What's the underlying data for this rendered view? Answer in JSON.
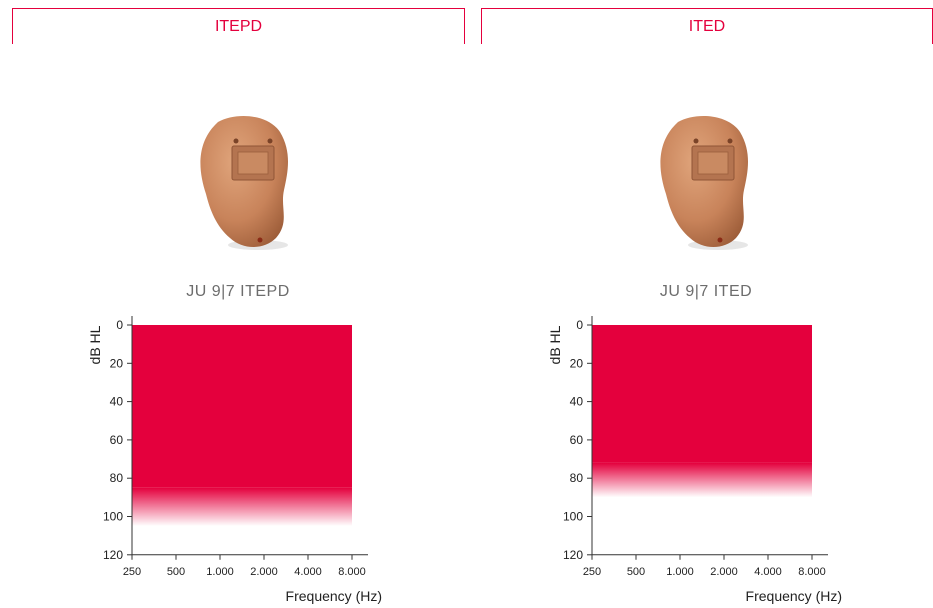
{
  "tabs": [
    {
      "label": "ITEPD"
    },
    {
      "label": "ITED"
    }
  ],
  "products": [
    {
      "name": "JU 9|7 ITEPD"
    },
    {
      "name": "JU 9|7 ITED"
    }
  ],
  "colors": {
    "accent": "#e4003d",
    "device_skin": "#c8835a"
  },
  "chart_data": [
    {
      "type": "area",
      "title": "",
      "xlabel": "Frequency (Hz)",
      "ylabel": "dB HL",
      "x_ticks": [
        "250",
        "500",
        "1.000",
        "2.000",
        "4.000",
        "8.000"
      ],
      "y_ticks": [
        "0",
        "20",
        "40",
        "60",
        "80",
        "100",
        "120"
      ],
      "ylim": [
        0,
        120
      ],
      "y_inverted": true,
      "fitting_range": {
        "x_from": "250",
        "x_to": "8.000",
        "solid_from_db": 0,
        "solid_to_db": 85,
        "fade_to_db": 105
      }
    },
    {
      "type": "area",
      "title": "",
      "xlabel": "Frequency (Hz)",
      "ylabel": "dB HL",
      "x_ticks": [
        "250",
        "500",
        "1.000",
        "2.000",
        "4.000",
        "8.000"
      ],
      "y_ticks": [
        "0",
        "20",
        "40",
        "60",
        "80",
        "100",
        "120"
      ],
      "ylim": [
        0,
        120
      ],
      "y_inverted": true,
      "fitting_range": {
        "x_from": "250",
        "x_to": "8.000",
        "solid_from_db": 0,
        "solid_to_db": 72,
        "fade_to_db": 90
      }
    }
  ]
}
